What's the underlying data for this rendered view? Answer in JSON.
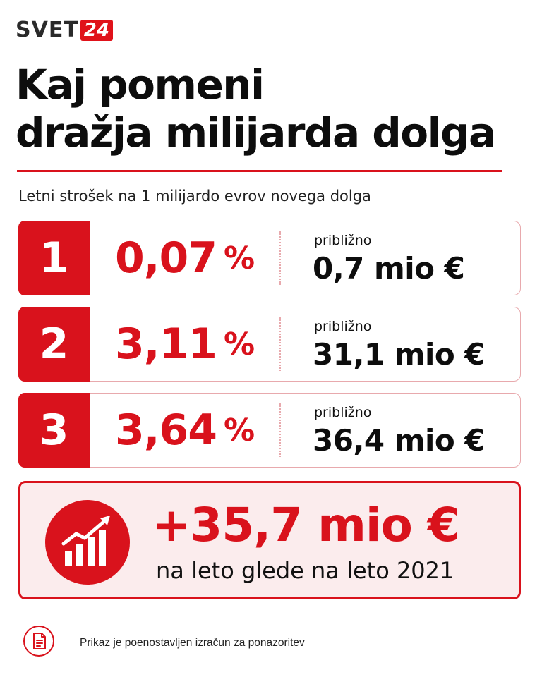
{
  "brand": {
    "name": "SVET",
    "badge": "24",
    "accent": "#d9121c"
  },
  "title": {
    "line1": "Kaj pomeni",
    "line2": "dražja milijarda dolga"
  },
  "subtitle": "Letni strošek na 1 milijardo evrov novega dolga",
  "rows": [
    {
      "number": "1",
      "rate": "0,07",
      "unit": "%",
      "label": "približno",
      "amount": "0,7 mio €"
    },
    {
      "number": "2",
      "rate": "3,11",
      "unit": "%",
      "label": "približno",
      "amount": "31,1 mio €"
    },
    {
      "number": "3",
      "rate": "3,64",
      "unit": "%",
      "label": "približno",
      "amount": "36,4 mio €"
    }
  ],
  "summary": {
    "icon": "bar-chart-growth-icon",
    "value": "+35,7 mio €",
    "description": "na leto glede na leto 2021"
  },
  "footnote": {
    "icon": "document-icon",
    "text": "Prikaz je poenostavljen izračun za ponazoritev"
  }
}
